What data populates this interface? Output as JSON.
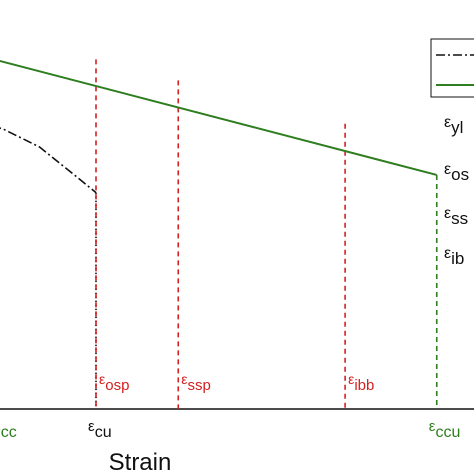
{
  "colors": {
    "green": "#2e7d1f",
    "red": "#d42020",
    "black": "#111111"
  },
  "chart_data": {
    "type": "line",
    "xlabel": "Strain",
    "x_ticks": [
      {
        "symbol": "ε",
        "sub": "cc",
        "strain": 0.0,
        "color": "green"
      },
      {
        "symbol": "ε",
        "sub": "cu",
        "strain": 0.2,
        "color": "black"
      },
      {
        "symbol": "ε",
        "sub": "ccu",
        "strain": 0.925,
        "color": "green"
      }
    ],
    "series": [
      {
        "style": "solid",
        "color": "green",
        "x": [
          -0.2,
          0.925
        ],
        "y": [
          1.2,
          0.755
        ]
      },
      {
        "style": "dashdot",
        "color": "black",
        "x": [
          -0.2,
          0.0,
          0.08,
          0.15,
          0.2
        ],
        "y": [
          0.95,
          0.905,
          0.845,
          0.76,
          0.698
        ]
      }
    ],
    "vlines": [
      {
        "strain": 0.2,
        "style": "dotted",
        "color": "black",
        "top": 0.698
      },
      {
        "strain": 0.2,
        "style": "dashed",
        "color": "red",
        "top": 1.128,
        "label_symbol": "ε",
        "label_sub": "osp"
      },
      {
        "strain": 0.375,
        "style": "dashed",
        "color": "red",
        "top": 1.06,
        "label_symbol": "ε",
        "label_sub": "ssp"
      },
      {
        "strain": 0.73,
        "style": "dashed",
        "color": "red",
        "top": 0.92,
        "label_symbol": "ε",
        "label_sub": "ibb"
      },
      {
        "strain": 0.925,
        "style": "dashed",
        "color": "green",
        "top": 0.755
      }
    ],
    "side_labels": [
      {
        "symbol": "ε",
        "sub": "yl"
      },
      {
        "symbol": "ε",
        "sub": "os"
      },
      {
        "symbol": "ε",
        "sub": "ss"
      },
      {
        "symbol": "ε",
        "sub": "ib"
      }
    ],
    "legend": {
      "placement": "top-right",
      "entries": [
        {
          "style": "dashdot",
          "color": "black"
        },
        {
          "style": "solid",
          "color": "green"
        }
      ]
    }
  }
}
